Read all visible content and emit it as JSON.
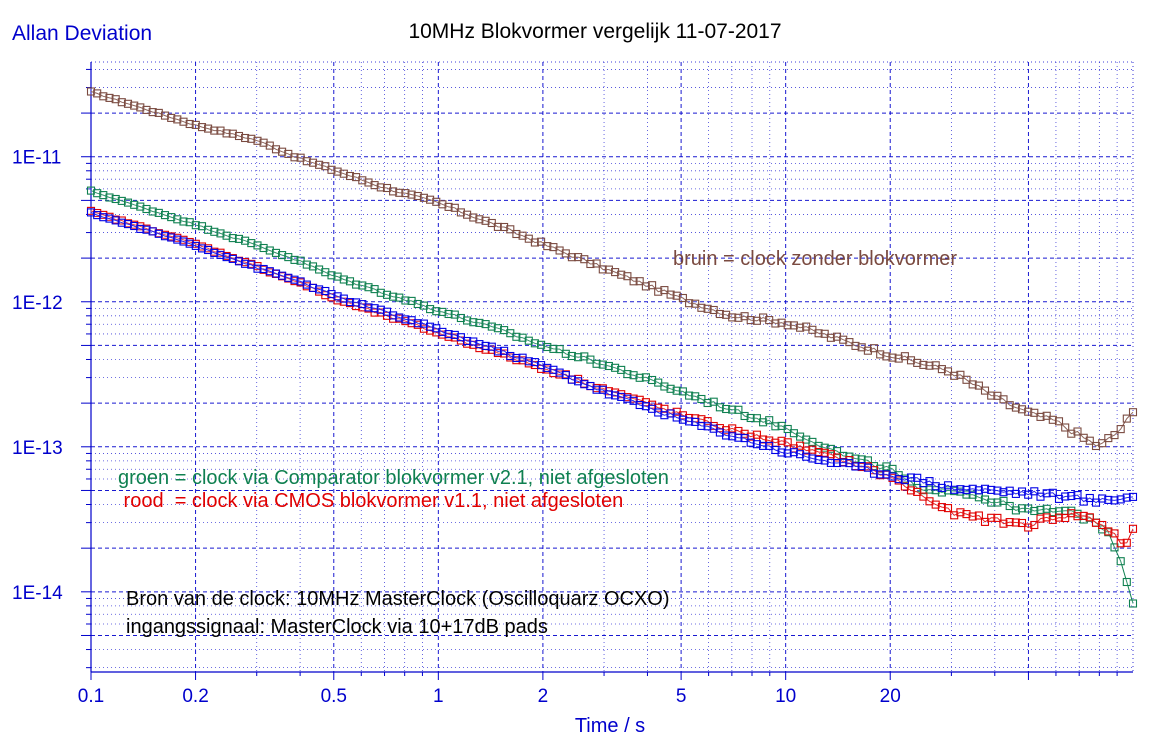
{
  "chart_data": {
    "type": "scatter",
    "title": "10MHz Blokvormer vergelijk 11-07-2017",
    "ylabel": "Allan Deviation",
    "xlabel": "Time / s",
    "xscale": "log",
    "yscale": "log",
    "xlim": [
      0.1,
      100
    ],
    "ylim": [
      2.8e-15,
      4.5e-11
    ],
    "grid": true,
    "x_ticks": [
      {
        "value": 0.1,
        "label": "0.1"
      },
      {
        "value": 0.2,
        "label": "0.2"
      },
      {
        "value": 0.5,
        "label": "0.5"
      },
      {
        "value": 1,
        "label": "1"
      },
      {
        "value": 2,
        "label": "2"
      },
      {
        "value": 5,
        "label": "5"
      },
      {
        "value": 10,
        "label": "10"
      },
      {
        "value": 20,
        "label": "20"
      }
    ],
    "y_ticks": [
      {
        "value": 1e-11,
        "label": "1E-11"
      },
      {
        "value": 1e-12,
        "label": "1E-12"
      },
      {
        "value": 1e-13,
        "label": "1E-13"
      },
      {
        "value": 1e-14,
        "label": "1E-14"
      }
    ],
    "series": [
      {
        "key": "bruin",
        "color": "#7a4a40",
        "x": [
          0.1,
          0.2,
          0.3,
          0.4,
          0.5,
          0.7,
          1,
          1.5,
          2,
          3,
          5,
          7,
          10,
          15,
          20,
          30,
          40,
          50,
          60,
          70,
          80,
          90,
          100
        ],
        "y": [
          2.8e-11,
          1.65e-11,
          1.3e-11,
          9.7e-12,
          8.1e-12,
          6.1e-12,
          4.8e-12,
          3.3e-12,
          2.5e-12,
          1.7e-12,
          1.05e-12,
          8e-13,
          7.2e-13,
          5.3e-13,
          4.3e-13,
          3.3e-13,
          2.2e-13,
          1.7e-13,
          1.5e-13,
          1.2e-13,
          1e-13,
          1.25e-13,
          1.7e-13
        ]
      },
      {
        "key": "groen",
        "color": "#0f8050",
        "x": [
          0.1,
          0.2,
          0.3,
          0.4,
          0.5,
          0.7,
          1,
          1.5,
          2,
          3,
          5,
          7,
          10,
          15,
          20,
          25,
          30,
          40,
          50,
          60,
          70,
          80,
          90,
          95,
          100
        ],
        "y": [
          5.8e-12,
          3.4e-12,
          2.45e-12,
          1.9e-12,
          1.5e-12,
          1.15e-12,
          8.7e-13,
          6.4e-13,
          5e-13,
          3.7e-13,
          2.4e-13,
          1.8e-13,
          1.35e-13,
          8.5e-14,
          7e-14,
          4.8e-14,
          5.2e-14,
          4.2e-14,
          3.6e-14,
          3.6e-14,
          3.4e-14,
          3e-14,
          2e-14,
          1.3e-14,
          8.5e-15
        ]
      },
      {
        "key": "rood",
        "color": "#e00000",
        "x": [
          0.1,
          0.2,
          0.3,
          0.4,
          0.5,
          0.7,
          1,
          1.5,
          2,
          3,
          5,
          7,
          10,
          15,
          20,
          25,
          30,
          40,
          50,
          60,
          70,
          80,
          90,
          95,
          100
        ],
        "y": [
          4.2e-12,
          2.5e-12,
          1.75e-12,
          1.35e-12,
          1.05e-12,
          8.1e-13,
          6.1e-13,
          4.4e-13,
          3.5e-13,
          2.5e-13,
          1.65e-13,
          1.3e-13,
          1.05e-13,
          8e-14,
          6.2e-14,
          4.5e-14,
          3.5e-14,
          3.1e-14,
          2.9e-14,
          3.3e-14,
          3.4e-14,
          3e-14,
          2.4e-14,
          2e-14,
          2.6e-14
        ]
      },
      {
        "key": "blauw",
        "color": "#0000e6",
        "x": [
          0.1,
          0.2,
          0.3,
          0.4,
          0.5,
          0.7,
          1,
          1.5,
          2,
          3,
          5,
          7,
          10,
          15,
          20,
          25,
          30,
          40,
          50,
          60,
          70,
          80,
          90,
          95,
          100
        ],
        "y": [
          4.1e-12,
          2.45e-12,
          1.72e-12,
          1.38e-12,
          1.1e-12,
          8.5e-13,
          6.4e-13,
          4.6e-13,
          3.6e-13,
          2.4e-13,
          1.55e-13,
          1.2e-13,
          9.2e-14,
          7.5e-14,
          6.4e-14,
          5.8e-14,
          5.2e-14,
          5e-14,
          4.8e-14,
          4.6e-14,
          4.4e-14,
          4.2e-14,
          4.4e-14,
          4.6e-14,
          4.5e-14
        ]
      }
    ],
    "annotations": [
      {
        "key": "bruin",
        "text": "bruin = clock zonder blokvormer",
        "color": "#7a4a40"
      },
      {
        "key": "groen",
        "text": "groen = clock via Comparator blokvormer v2.1, niet afgesloten",
        "color": "#0f8050"
      },
      {
        "key": "rood",
        "text": " rood  = clock via CMOS blokvormer v1.1, niet afgesloten",
        "color": "#e00000"
      },
      {
        "key": "bron1",
        "text": "Bron van de clock: 10MHz MasterClock (Oscilloquarz OCXO)",
        "color": "#000000"
      },
      {
        "key": "bron2",
        "text": "ingangssignaal: MasterClock via 10+17dB pads",
        "color": "#000000"
      }
    ],
    "colors": {
      "axis": "#0000cc",
      "grid": "#0000cc",
      "title": "#000000"
    }
  }
}
